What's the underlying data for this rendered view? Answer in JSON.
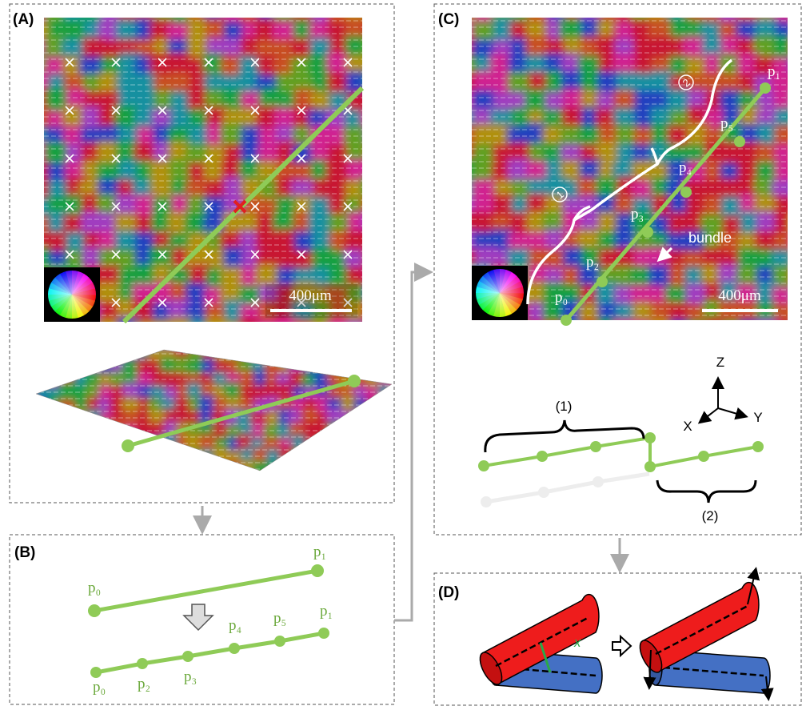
{
  "panels": {
    "a": {
      "label": "(A)",
      "scale_bar": "400μm"
    },
    "b": {
      "label": "(B)",
      "top_points": [
        "p₀",
        "p₁"
      ],
      "bottom_points": [
        "p₀",
        "p₂",
        "p₃",
        "p₄",
        "p₅",
        "p₁"
      ]
    },
    "c": {
      "label": "(C)",
      "scale_bar": "400μm",
      "points": [
        "p₀",
        "p₂",
        "p₃",
        "p₄",
        "p₅",
        "p₁"
      ],
      "circled": [
        "1",
        "2"
      ],
      "bundle": "bundle",
      "segments": [
        "(1)",
        "(2)"
      ],
      "axes": [
        "Z",
        "X",
        "Y"
      ]
    },
    "d": {
      "label": "(D)",
      "distance": "x"
    }
  }
}
